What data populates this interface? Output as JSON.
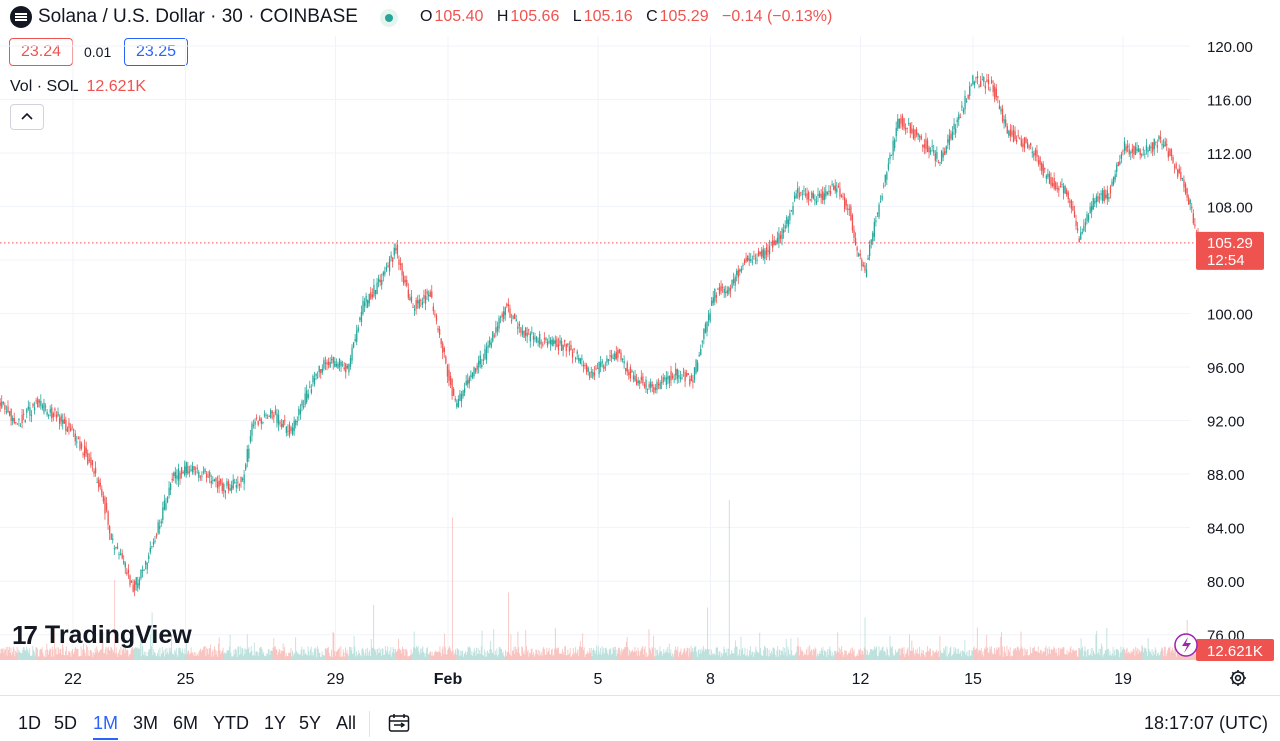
{
  "header": {
    "title": "Solana / U.S. Dollar · 30 · COINBASE",
    "ohlc": [
      {
        "k": "O",
        "v": "105.40"
      },
      {
        "k": "H",
        "v": "105.66"
      },
      {
        "k": "L",
        "v": "105.16"
      },
      {
        "k": "C",
        "v": "105.29"
      }
    ],
    "change": "−0.14 (−0.13%)",
    "status_icon": "market-open-dot"
  },
  "trade": {
    "sell": "23.24",
    "spread": "0.01",
    "buy": "23.25"
  },
  "volume_legend": {
    "label": "Vol · SOL",
    "value": "12.621K"
  },
  "branding": {
    "name": "TradingView",
    "mark": "17"
  },
  "bottom": {
    "timeframes": [
      "1D",
      "5D",
      "1M",
      "3M",
      "6M",
      "YTD",
      "1Y",
      "5Y",
      "All"
    ],
    "active_timeframe": "1M",
    "clock": "18:17:07 (UTC)"
  },
  "colors": {
    "up": "#26a69a",
    "down": "#ef5350",
    "grid": "#f0f3fa",
    "price_line": "#ef5350"
  },
  "chart_data": {
    "type": "candlestick",
    "title": "Solana / U.S. Dollar · 30 · COINBASE",
    "ylim": [
      74,
      121
    ],
    "y_ticks": [
      "120.00",
      "116.00",
      "112.00",
      "108.00",
      "104.00",
      "100.00",
      "96.00",
      "92.00",
      "88.00",
      "84.00",
      "80.00",
      "76.00"
    ],
    "x_ticks": [
      "22",
      "25",
      "29",
      "Feb",
      "5",
      "8",
      "12",
      "15",
      "19"
    ],
    "x_tick_index": [
      2,
      5,
      9,
      12,
      16,
      19,
      23,
      26,
      30
    ],
    "n_days": 33,
    "day_start": 0.2,
    "last_price": "105.29",
    "countdown": "12:54",
    "last_volume": "12.621K",
    "close_path": [
      [
        0.0,
        93.5
      ],
      [
        0.5,
        91.8
      ],
      [
        1.0,
        93.2
      ],
      [
        1.5,
        92.5
      ],
      [
        2.0,
        91.0
      ],
      [
        2.5,
        88.5
      ],
      [
        2.8,
        86.0
      ],
      [
        3.0,
        83.0
      ],
      [
        3.3,
        81.5
      ],
      [
        3.6,
        79.5
      ],
      [
        3.9,
        81.0
      ],
      [
        4.2,
        83.5
      ],
      [
        4.6,
        87.5
      ],
      [
        5.0,
        88.5
      ],
      [
        5.5,
        88.0
      ],
      [
        6.0,
        87.0
      ],
      [
        6.5,
        87.5
      ],
      [
        6.8,
        92.0
      ],
      [
        7.3,
        92.5
      ],
      [
        7.8,
        91.0
      ],
      [
        8.3,
        94.5
      ],
      [
        8.7,
        96.5
      ],
      [
        9.3,
        96.0
      ],
      [
        9.7,
        100.5
      ],
      [
        10.2,
        102.5
      ],
      [
        10.6,
        104.8
      ],
      [
        11.0,
        100.5
      ],
      [
        11.5,
        101.5
      ],
      [
        11.9,
        96.5
      ],
      [
        12.2,
        93.0
      ],
      [
        12.6,
        95.5
      ],
      [
        13.0,
        97.0
      ],
      [
        13.5,
        100.5
      ],
      [
        14.0,
        98.5
      ],
      [
        14.5,
        98.0
      ],
      [
        15.2,
        97.5
      ],
      [
        15.8,
        95.5
      ],
      [
        16.5,
        97.0
      ],
      [
        17.0,
        95.0
      ],
      [
        17.5,
        94.5
      ],
      [
        18.0,
        95.5
      ],
      [
        18.5,
        95.0
      ],
      [
        18.8,
        98.5
      ],
      [
        19.1,
        101.5
      ],
      [
        19.5,
        102.0
      ],
      [
        19.9,
        104.0
      ],
      [
        20.4,
        104.5
      ],
      [
        20.9,
        106.0
      ],
      [
        21.3,
        109.0
      ],
      [
        21.8,
        108.5
      ],
      [
        22.3,
        109.5
      ],
      [
        22.7,
        107.5
      ],
      [
        22.9,
        104.5
      ],
      [
        23.1,
        103.0
      ],
      [
        23.5,
        108.5
      ],
      [
        24.0,
        114.5
      ],
      [
        24.6,
        113.0
      ],
      [
        25.1,
        111.5
      ],
      [
        25.5,
        114.0
      ],
      [
        26.0,
        117.5
      ],
      [
        26.5,
        117.0
      ],
      [
        26.9,
        113.5
      ],
      [
        27.5,
        112.5
      ],
      [
        28.0,
        110.0
      ],
      [
        28.5,
        109.0
      ],
      [
        28.8,
        105.5
      ],
      [
        29.2,
        108.5
      ],
      [
        29.6,
        109.0
      ],
      [
        30.0,
        112.5
      ],
      [
        30.5,
        112.0
      ],
      [
        31.0,
        113.0
      ],
      [
        31.3,
        111.5
      ],
      [
        31.6,
        109.5
      ],
      [
        31.8,
        108.0
      ],
      [
        32.0,
        104.9
      ],
      [
        32.1,
        105.29
      ]
    ],
    "volume_spikes": [
      {
        "day": 3.1,
        "volume": 16.0
      },
      {
        "day": 4.1,
        "volume": 9.5
      },
      {
        "day": 10.0,
        "volume": 11.0
      },
      {
        "day": 12.1,
        "volume": 28.5
      },
      {
        "day": 13.6,
        "volume": 13.5
      },
      {
        "day": 18.9,
        "volume": 10.5
      },
      {
        "day": 19.5,
        "volume": 32.0
      },
      {
        "day": 23.1,
        "volume": 8.5
      },
      {
        "day": 26.1,
        "volume": 6.5
      },
      {
        "day": 31.7,
        "volume": 8.0
      }
    ]
  }
}
